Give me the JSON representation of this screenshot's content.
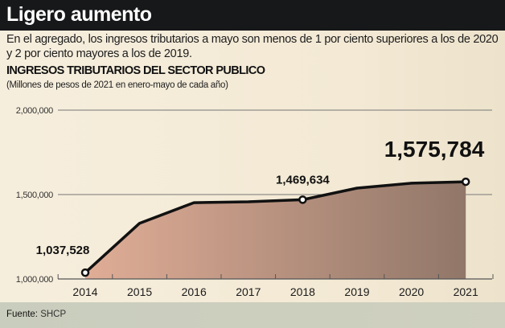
{
  "header": {
    "title": "Ligero aumento"
  },
  "description": "En el agregado, los ingresos tributarios a mayo son menos de 1 por ciento superiores a los de 2020 y 2 por ciento mayores a los de 2019.",
  "source": {
    "label": "Fuente:",
    "value": "SHCP"
  },
  "chart_data": {
    "type": "area",
    "title": "INGRESOS TRIBUTARIOS DEL SECTOR PUBLICO",
    "subtitle": "(Millones de pesos de 2021 en enero-mayo de cada año)",
    "categories": [
      "2014",
      "2015",
      "2016",
      "2017",
      "2018",
      "2019",
      "2020",
      "2021"
    ],
    "values": [
      1037528,
      1330000,
      1452000,
      1457000,
      1469634,
      1538000,
      1567000,
      1575784
    ],
    "ylim": [
      1000000,
      2000000
    ],
    "yticks": [
      "1,000,000",
      "1,500,000",
      "2,000,000"
    ],
    "ytick_values": [
      1000000,
      1500000,
      2000000
    ],
    "data_labels": [
      {
        "index": 0,
        "text": "1,037,528"
      },
      {
        "index": 4,
        "text": "1,469,634"
      },
      {
        "index": 7,
        "text": "1,575,784"
      }
    ],
    "grid": true,
    "colors": {
      "line": "#111111",
      "fill_start": "#e0ad96",
      "fill_end": "#917769"
    }
  }
}
